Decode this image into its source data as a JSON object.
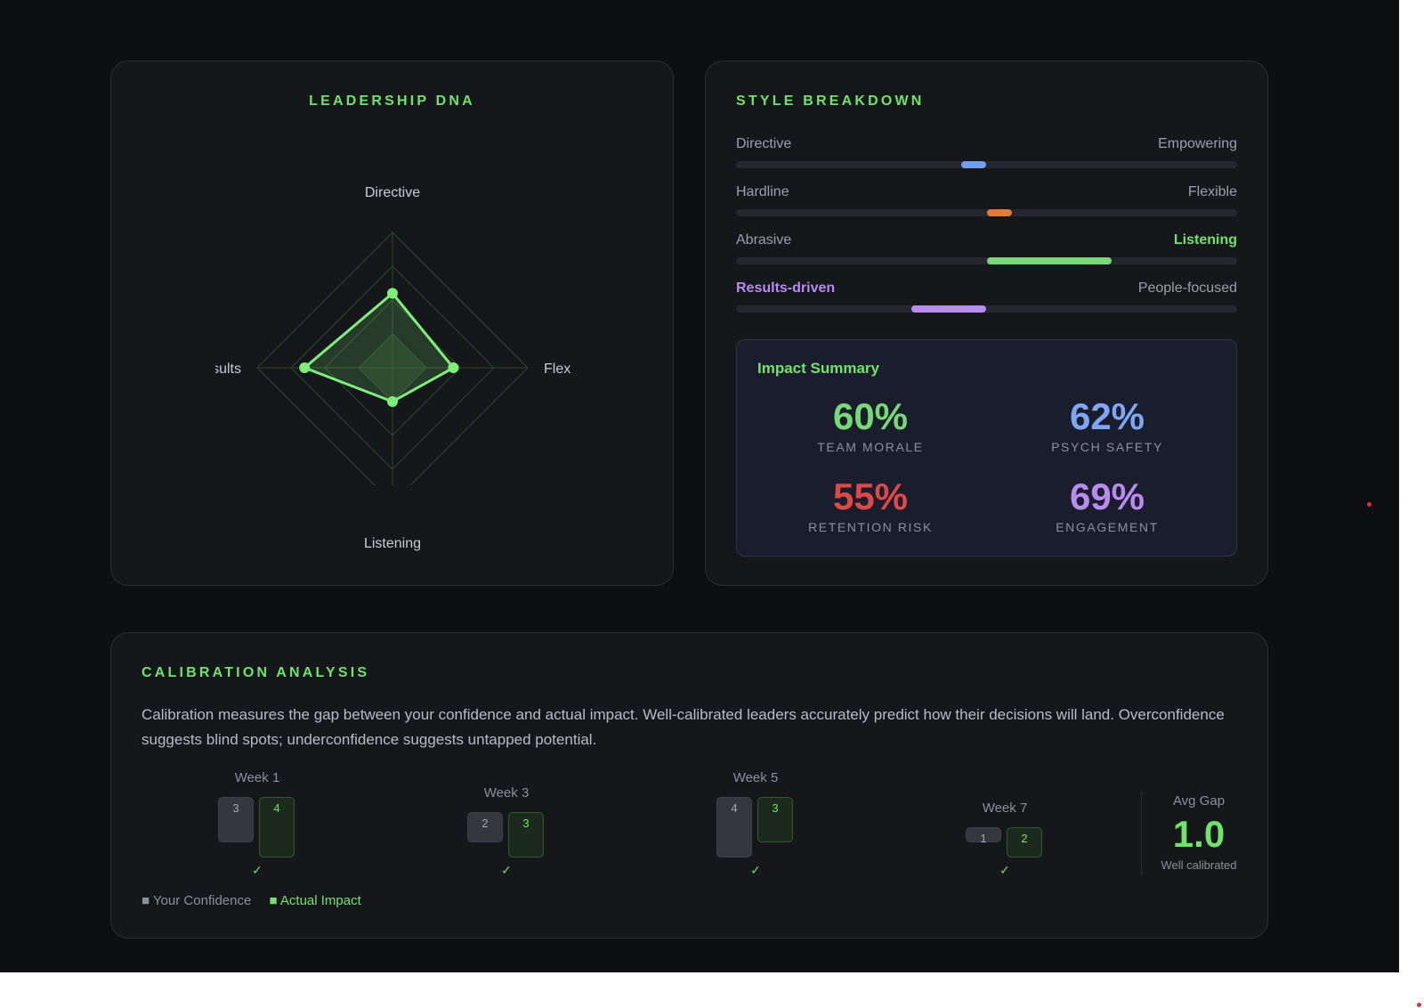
{
  "dna": {
    "title": "LEADERSHIP DNA",
    "axes": {
      "top": "Directive",
      "right": "Flex",
      "bottom": "Listening",
      "left": "Results"
    },
    "values": {
      "top": 0.55,
      "right": 0.45,
      "bottom": 0.25,
      "left": 0.65
    },
    "rings": 4
  },
  "style": {
    "title": "STYLE BREAKDOWN",
    "sliders": [
      {
        "left": "Directive",
        "right": "Empowering",
        "start": 0.45,
        "end": 0.5,
        "color": "#6f9ef0",
        "highlight": ""
      },
      {
        "left": "Hardline",
        "right": "Flexible",
        "start": 0.5,
        "end": 0.55,
        "color": "#e07a34",
        "highlight": ""
      },
      {
        "left": "Abrasive",
        "right": "Listening",
        "start": 0.5,
        "end": 0.75,
        "color": "#78d878",
        "highlight": "right"
      },
      {
        "left": "Results-driven",
        "right": "People-focused",
        "start": 0.35,
        "end": 0.5,
        "color": "#b98af0",
        "highlight": "left"
      }
    ]
  },
  "impact": {
    "title": "Impact Summary",
    "metrics": [
      {
        "value": "60%",
        "label": "TEAM MORALE",
        "color": "#78d878"
      },
      {
        "value": "62%",
        "label": "PSYCH SAFETY",
        "color": "#7ea6f2"
      },
      {
        "value": "55%",
        "label": "RETENTION RISK",
        "color": "#e04848"
      },
      {
        "value": "69%",
        "label": "ENGAGEMENT",
        "color": "#b98af0"
      }
    ]
  },
  "calibration": {
    "title": "CALIBRATION ANALYSIS",
    "description": "Calibration measures the gap between your confidence and actual impact. Well-calibrated leaders accurately predict how their decisions will land. Overconfidence suggests blind spots; underconfidence suggests untapped potential.",
    "weeks": [
      {
        "label": "Week 1",
        "confidence": 3,
        "actual": 4,
        "check": "✓"
      },
      {
        "label": "Week 3",
        "confidence": 2,
        "actual": 3,
        "check": "✓"
      },
      {
        "label": "Week 5",
        "confidence": 4,
        "actual": 3,
        "check": "✓"
      },
      {
        "label": "Week 7",
        "confidence": 1,
        "actual": 2,
        "check": "✓"
      }
    ],
    "avg_label": "Avg Gap",
    "avg_value": "1.0",
    "avg_sub": "Well calibrated",
    "legend_confidence": "■ Your Confidence",
    "legend_actual": "■ Actual Impact"
  }
}
